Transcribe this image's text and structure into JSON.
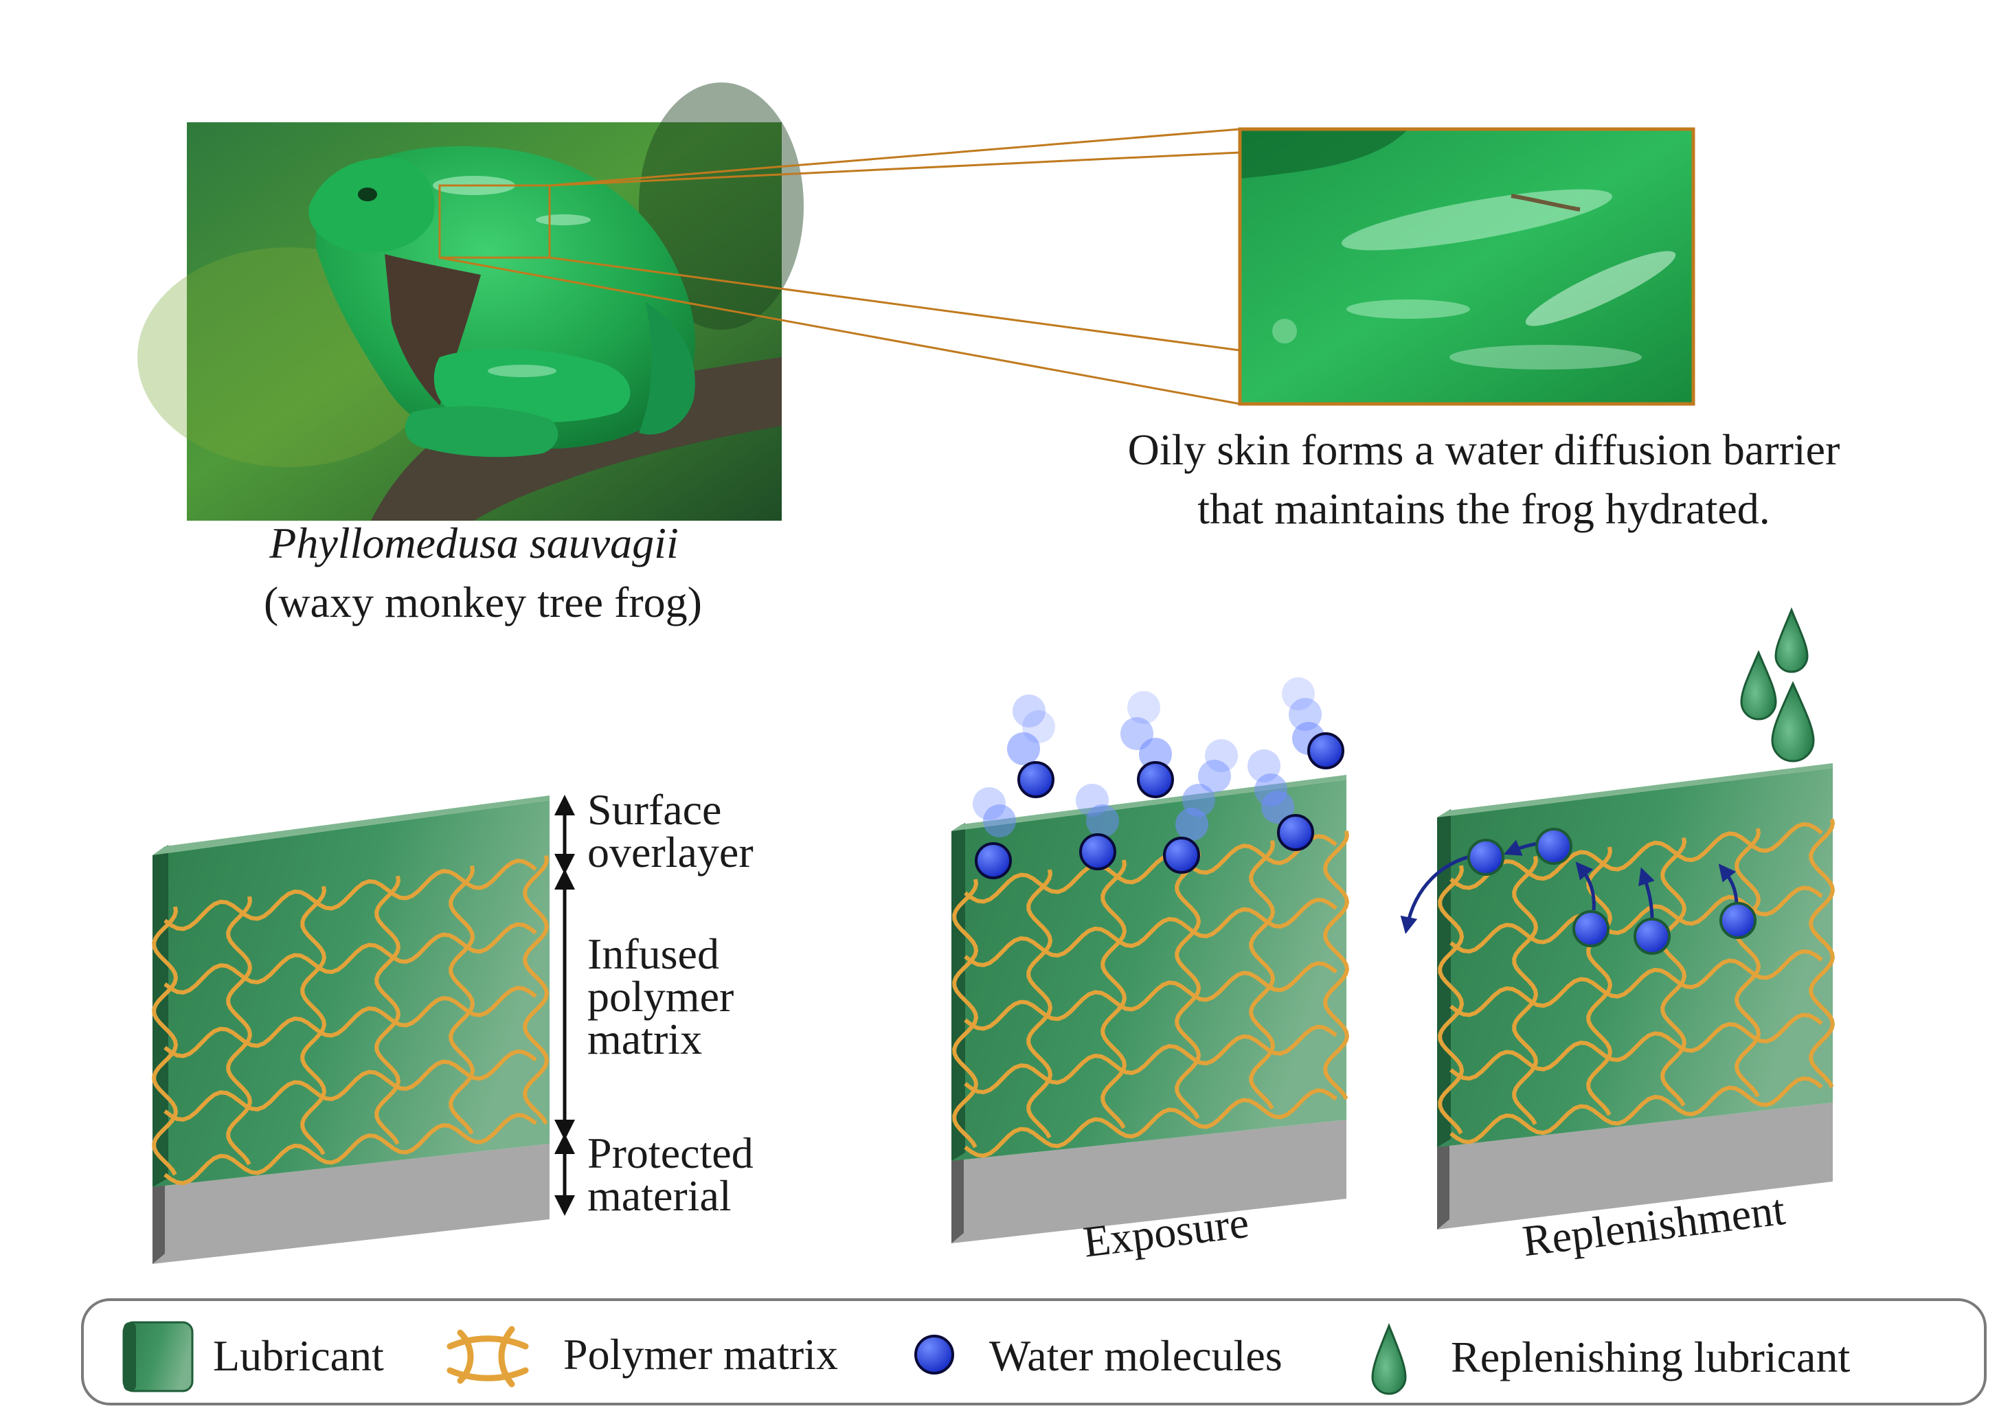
{
  "frog": {
    "species": "Phyllomedusa sauvagii",
    "common_name": "(waxy monkey tree frog)",
    "caption_line1": "Oily skin forms a water diffusion barrier",
    "caption_line2": "that maintains the frog hydrated."
  },
  "layers": {
    "surface_line1": "Surface",
    "surface_line2": "overlayer",
    "infused_line1": "Infused",
    "infused_line2": "polymer",
    "infused_line3": "matrix",
    "protected_line1": "Protected",
    "protected_line2": "material"
  },
  "panels": {
    "exposure": "Exposure",
    "replenishment": "Replenishment"
  },
  "legend": {
    "lubricant": "Lubricant",
    "polymer": "Polymer matrix",
    "water": "Water molecules",
    "replenishing": "Replenishing lubricant"
  },
  "colors": {
    "lubricant": "#3f8f5e",
    "polymer": "#e3a33a",
    "water": "#2440d8",
    "protected": "#a3a3a3",
    "zoom_frame": "#c07a1e"
  }
}
